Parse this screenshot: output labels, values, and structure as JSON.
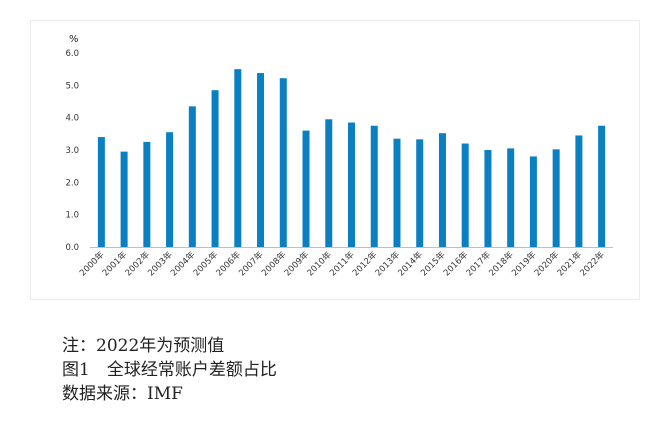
{
  "chart_data": {
    "type": "bar",
    "unit_label": "%",
    "categories": [
      "2000年",
      "2001年",
      "2002年",
      "2003年",
      "2004年",
      "2005年",
      "2006年",
      "2007年",
      "2008年",
      "2009年",
      "2010年",
      "2011年",
      "2012年",
      "2013年",
      "2014年",
      "2015年",
      "2016年",
      "2017年",
      "2018年",
      "2019年",
      "2020年",
      "2021年",
      "2022年"
    ],
    "values": [
      3.4,
      2.95,
      3.25,
      3.55,
      4.35,
      4.85,
      5.5,
      5.38,
      5.22,
      3.6,
      3.95,
      3.85,
      3.75,
      3.35,
      3.33,
      3.52,
      3.2,
      3.0,
      3.05,
      2.8,
      3.02,
      3.45,
      3.75
    ],
    "ylim": [
      0,
      6
    ],
    "yticks": [
      "0.0",
      "1.0",
      "2.0",
      "3.0",
      "4.0",
      "5.0",
      "6.0"
    ],
    "grid": false,
    "bar_color": "#0a7fc2"
  },
  "captions": {
    "note": "注：2022年为预测值",
    "title": "图1　全球经常账户差额占比",
    "source": "数据来源：IMF"
  }
}
